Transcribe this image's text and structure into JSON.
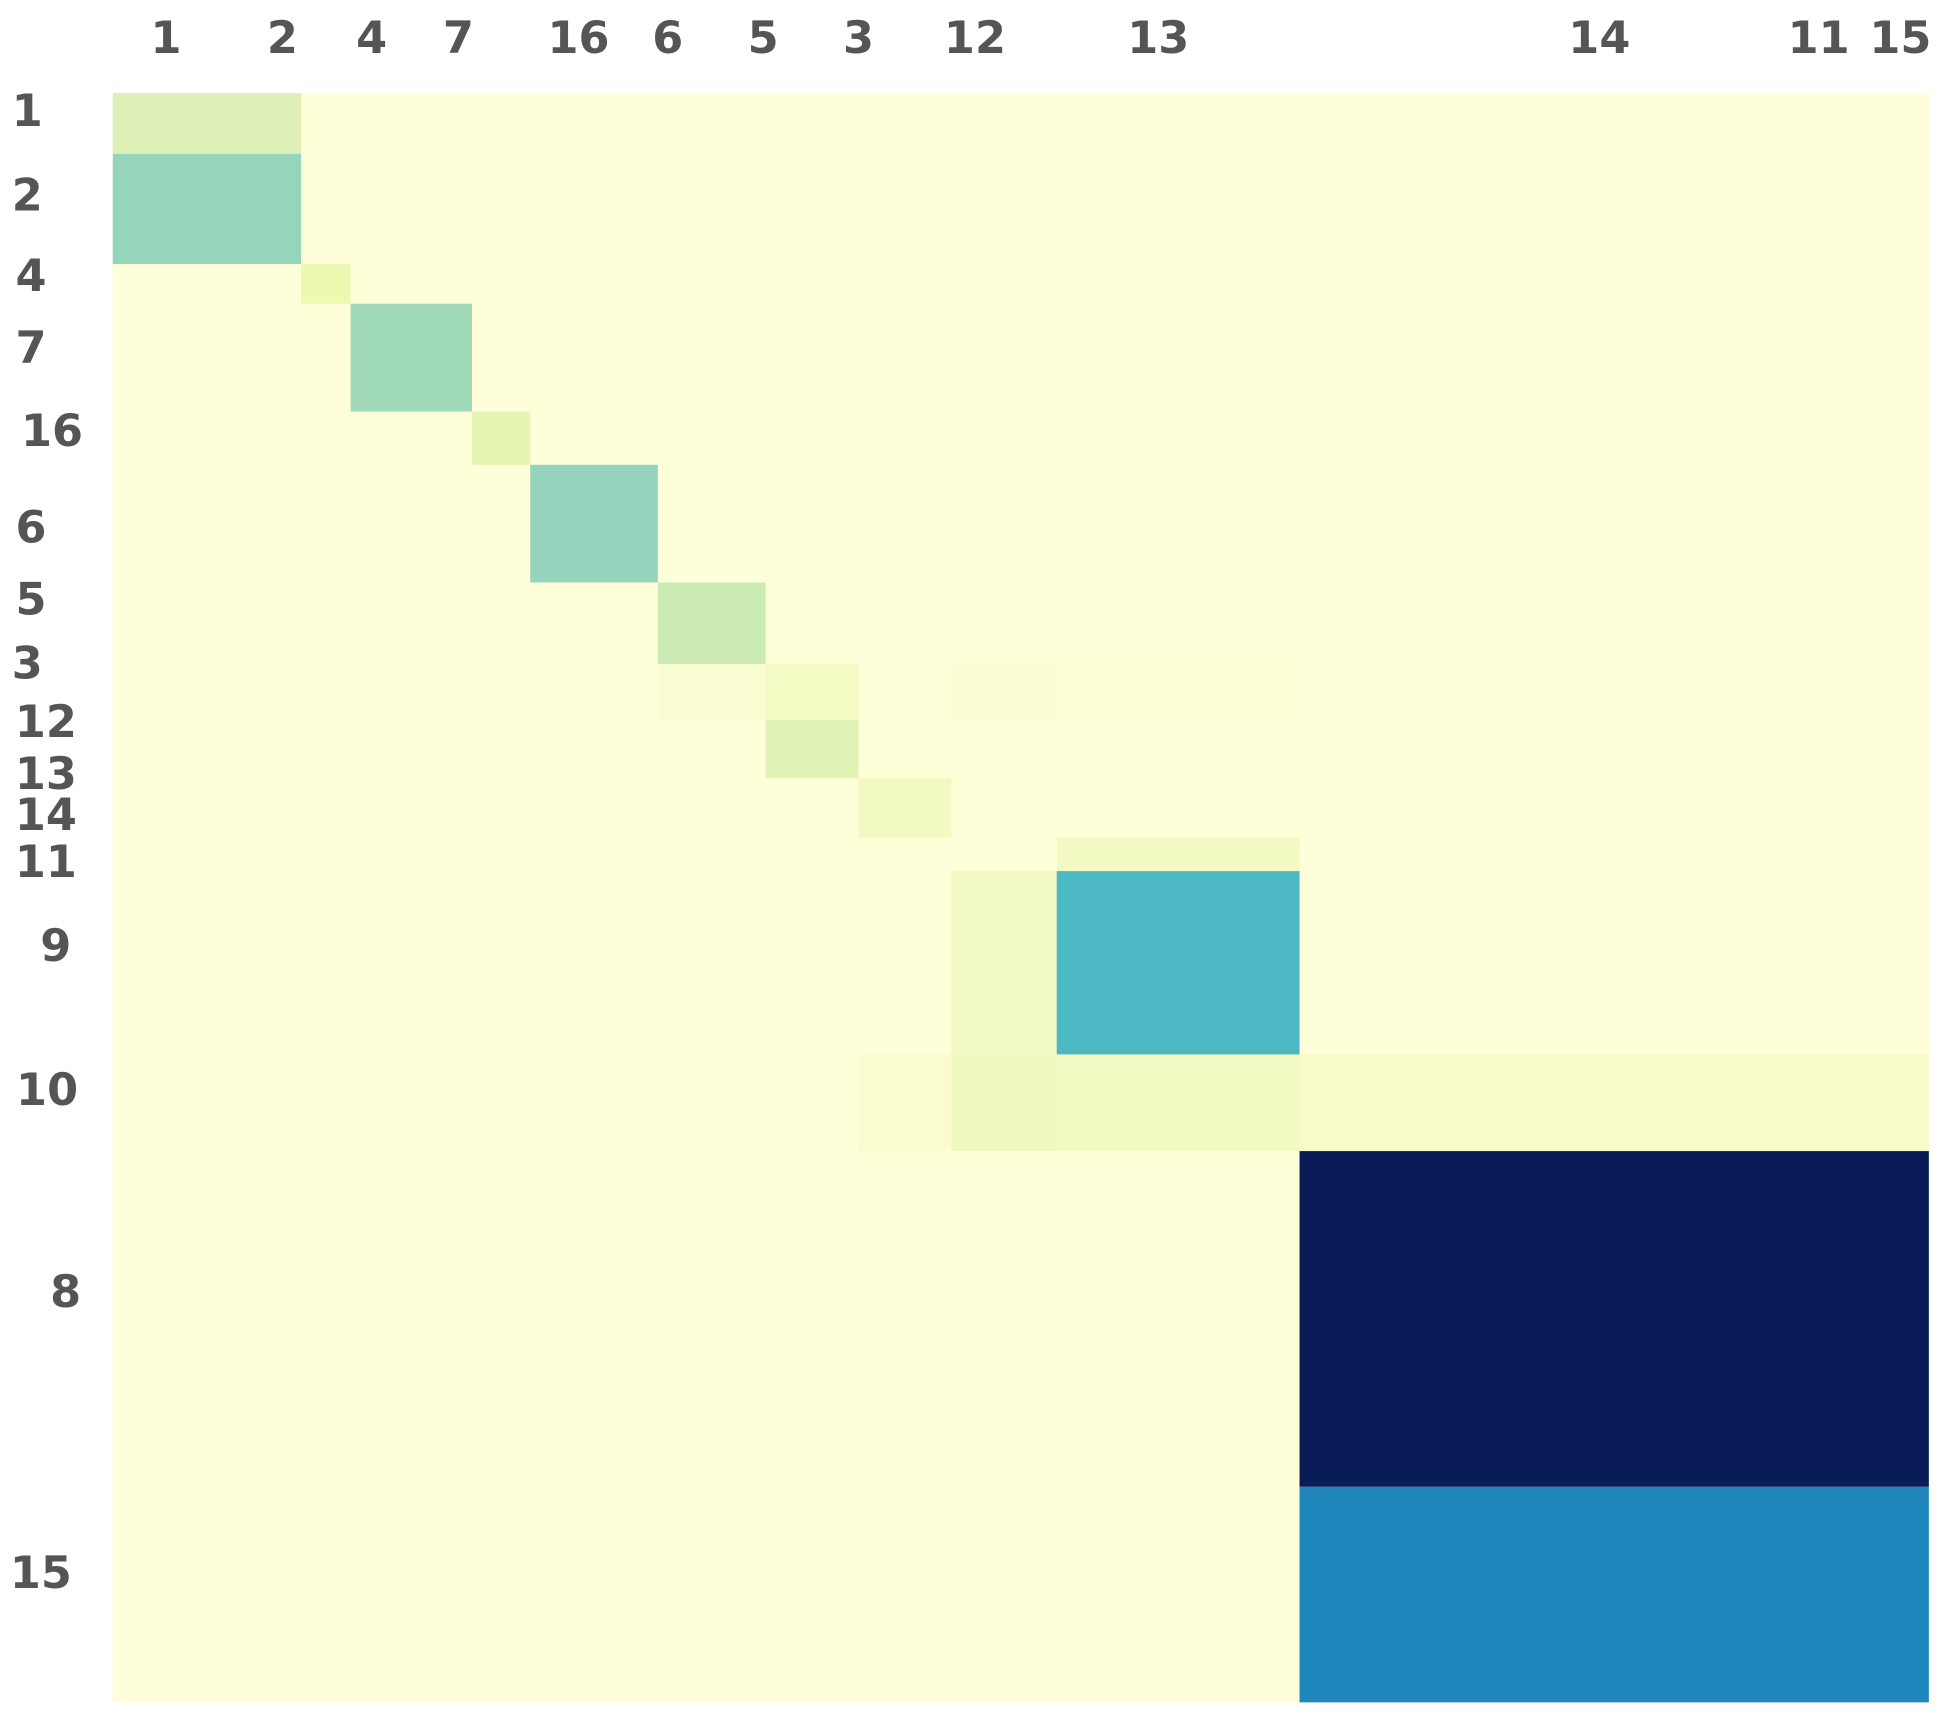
{
  "column_labels": [
    "1",
    "2",
    "4",
    "7",
    "16",
    "6",
    "5",
    "3",
    "12",
    "13",
    "14",
    "11",
    "15"
  ],
  "row_labels": [
    "1",
    "2",
    "4",
    "7",
    "16",
    "6",
    "5",
    "3",
    "12",
    "13",
    "14",
    "11",
    "9",
    "10",
    "8",
    "15"
  ]
}
